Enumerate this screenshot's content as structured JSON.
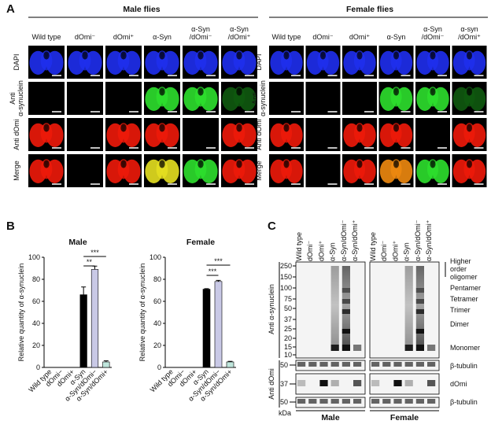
{
  "panel_a": {
    "label": "A",
    "groups": [
      {
        "title": "Male flies",
        "columns": [
          [
            "Wild type"
          ],
          [
            "dOmi⁻"
          ],
          [
            "dOmi⁺"
          ],
          [
            "α-Syn"
          ],
          [
            "α-Syn",
            "/dOmi⁻"
          ],
          [
            "α-Syn",
            "/dOmi⁺"
          ]
        ],
        "rows": [
          [
            "DAPI"
          ],
          [
            "Anti",
            "α-synuclein"
          ],
          [
            "Anti dOmi"
          ],
          [
            "Merge"
          ]
        ]
      },
      {
        "title": "Female flies",
        "columns": [
          [
            "Wild type"
          ],
          [
            "dOmi⁻"
          ],
          [
            "dOmi⁺"
          ],
          [
            "α-Syn"
          ],
          [
            "α-Syn",
            "/dOmi⁻"
          ],
          [
            "α-syn",
            "/dOmi⁺"
          ]
        ],
        "rows": [
          [
            "DAPI"
          ],
          [
            "Anti",
            "α-synuclein"
          ],
          [
            "Anti dOmi"
          ],
          [
            "Merge"
          ]
        ]
      }
    ]
  },
  "panel_b": {
    "label": "B"
  },
  "chart_data": [
    {
      "type": "bar",
      "title": "Male",
      "y_label": "Relative quantity of α-synuclein",
      "categories": [
        "Wild type",
        "dOmi−",
        "dOmi+",
        "α-Syn",
        "α-Syn/dOmi−",
        "α-Syn/dOmi+"
      ],
      "values": [
        0,
        0,
        0,
        66,
        89,
        5
      ],
      "errors": [
        0,
        0,
        0,
        7,
        3,
        1
      ],
      "colors": [
        "#000000",
        "#000000",
        "#000000",
        "#000000",
        "#c9c9e6",
        "#bfe6dc"
      ],
      "ylim": [
        0,
        100
      ],
      "yticks": [
        0,
        20,
        40,
        60,
        80,
        100
      ],
      "annotations": [
        "**",
        "***"
      ]
    },
    {
      "type": "bar",
      "title": "Female",
      "y_label": "Relative quantity of α-synuclein",
      "categories": [
        "Wild type",
        "dOmi−",
        "dOmi+",
        "α-Syn",
        "α-Syn/dOmi−",
        "α-Syn/dOmi+"
      ],
      "values": [
        0,
        0,
        0,
        71,
        78,
        5
      ],
      "errors": [
        0,
        0,
        0,
        0.5,
        1,
        0.5
      ],
      "colors": [
        "#000000",
        "#000000",
        "#000000",
        "#000000",
        "#c9c9e6",
        "#bfe6dc"
      ],
      "ylim": [
        0,
        100
      ],
      "yticks": [
        0,
        20,
        40,
        60,
        80,
        100
      ],
      "annotations": [
        "***",
        "***"
      ]
    }
  ],
  "panel_c": {
    "label": "C",
    "lanes": [
      "Wild type",
      "dOmi⁻",
      "dOmi⁺",
      "α-Syn",
      "α-Syn/dOmi⁻",
      "α-Syn/dOmi⁺"
    ],
    "groups": [
      "Male",
      "Female"
    ],
    "left_labels": [
      "Anti α-synuclein",
      "Anti dOmi"
    ],
    "markers_top": [
      250,
      150,
      100,
      75,
      50,
      37,
      25,
      20,
      15,
      10
    ],
    "markers_bottom": [
      50,
      37,
      50
    ],
    "unit": "kDa",
    "right_labels": [
      [
        "Higher",
        "order",
        "oligomer"
      ],
      [
        "Pentamer"
      ],
      [
        "Tetramer"
      ],
      [
        "Trimer"
      ],
      [
        "Dimer"
      ],
      [
        "Monomer"
      ],
      [
        "β-tubulin"
      ],
      [
        "dOmi"
      ],
      [
        "β-tubulin"
      ]
    ]
  }
}
